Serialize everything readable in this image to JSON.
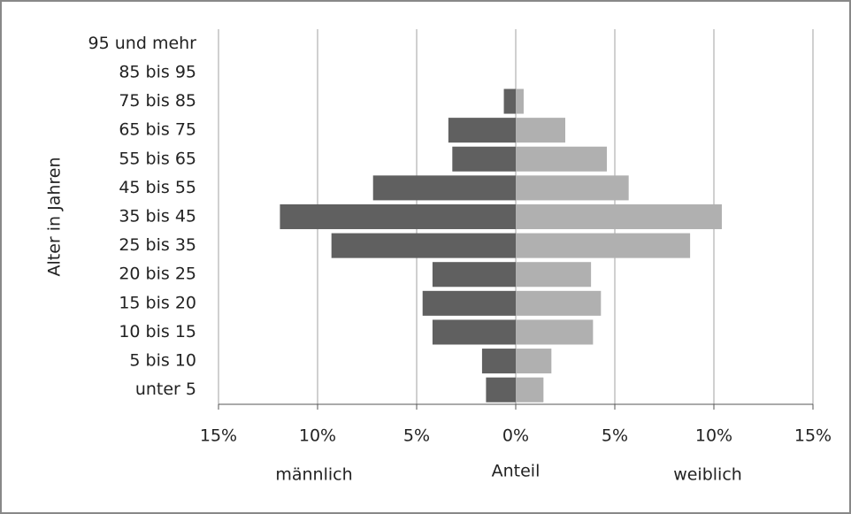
{
  "chart_data": {
    "type": "bar",
    "orientation": "horizontal",
    "y_label": "Alter in Jahren",
    "x_label": "Anteil",
    "left_label": "männlich",
    "right_label": "weiblich",
    "categories": [
      "unter 5",
      "5 bis 10",
      "10 bis 15",
      "15 bis 20",
      "20 bis 25",
      "25 bis 35",
      "35 bis 45",
      "45 bis 55",
      "55 bis 65",
      "65 bis 75",
      "75 bis 85",
      "85 bis 95",
      "95 und mehr"
    ],
    "series": [
      {
        "name": "männlich",
        "color": "#606060",
        "values": [
          -1.5,
          -1.7,
          -4.2,
          -4.7,
          -4.2,
          -9.3,
          -11.9,
          -7.2,
          -3.2,
          -3.4,
          -0.6,
          0,
          0
        ]
      },
      {
        "name": "weiblich",
        "color": "#b0b0b0",
        "values": [
          1.4,
          1.8,
          3.9,
          4.3,
          3.8,
          8.8,
          10.4,
          5.7,
          4.6,
          2.5,
          0.4,
          0,
          0
        ]
      }
    ],
    "xlim": [
      -15,
      15
    ],
    "xticks": [
      {
        "value": -15,
        "label": "15%"
      },
      {
        "value": -10,
        "label": "10%"
      },
      {
        "value": -5,
        "label": "5%"
      },
      {
        "value": 0,
        "label": "0%"
      },
      {
        "value": 5,
        "label": "5%"
      },
      {
        "value": 10,
        "label": "10%"
      },
      {
        "value": 15,
        "label": "15%"
      }
    ],
    "grid": true
  }
}
